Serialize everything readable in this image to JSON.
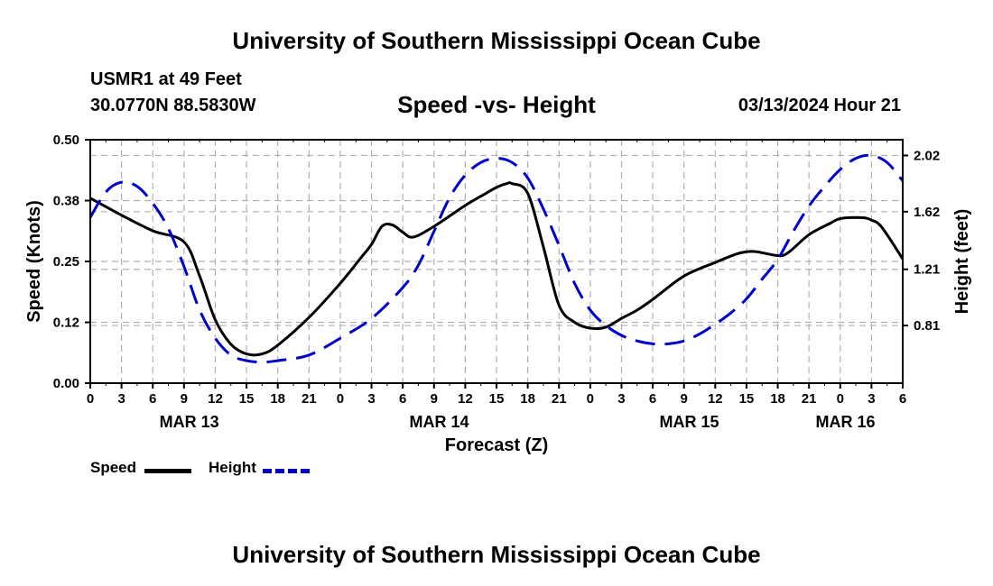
{
  "header": {
    "title": "University of Southern Mississippi Ocean Cube",
    "station": "USMR1 at 49 Feet",
    "coordinates": "30.0770N  88.5830W",
    "subtitle": "Speed -vs- Height",
    "datetime": "03/13/2024 Hour 21"
  },
  "footer": {
    "title": "University of Southern Mississippi Ocean Cube"
  },
  "chart_data": {
    "type": "line",
    "title": "Speed -vs- Height",
    "xlabel": "Forecast (Z)",
    "ylabel": "Speed (Knots)",
    "y2label": "Height (feet)",
    "colors": {
      "speed": "#000000",
      "height": "#0000cc",
      "grid": "#b0b0b0"
    },
    "x_range_hours": [
      0,
      78
    ],
    "x_tick_step_hours": 3,
    "x_tick_labels": [
      "0",
      "3",
      "6",
      "9",
      "12",
      "15",
      "18",
      "21",
      "0",
      "3",
      "6",
      "9",
      "12",
      "15",
      "18",
      "21",
      "0",
      "3",
      "6",
      "9",
      "12",
      "15",
      "18",
      "21",
      "0",
      "3",
      "6"
    ],
    "date_labels": [
      {
        "label": "MAR 13",
        "hour": 9.5
      },
      {
        "label": "MAR 14",
        "hour": 33.5
      },
      {
        "label": "MAR 15",
        "hour": 57.5
      },
      {
        "label": "MAR 16",
        "hour": 72.5
      }
    ],
    "y_left": {
      "min": 0,
      "max": 0.5,
      "ticks": [
        0.0,
        0.125,
        0.25,
        0.375,
        0.5
      ],
      "tick_labels": [
        "0.00",
        "0.12",
        "0.25",
        "0.38",
        "0.50"
      ]
    },
    "y_right": {
      "min": 0.4,
      "max": 2.132,
      "ticks": [
        0.81,
        1.21,
        1.62,
        2.02
      ],
      "tick_labels": [
        "0.81",
        "1.21",
        "1.62",
        "2.02"
      ]
    },
    "series": [
      {
        "name": "Speed",
        "axis": "left",
        "style": "solid",
        "x": [
          0,
          3,
          6,
          9,
          10.5,
          12,
          13.5,
          15,
          16.5,
          18,
          21,
          24,
          26,
          27,
          28,
          29,
          30,
          31,
          33,
          36,
          38,
          39,
          40,
          40.5,
          42,
          43.5,
          45,
          46.5,
          48,
          49.5,
          51,
          52.5,
          54,
          57,
          60,
          62,
          63,
          64,
          66,
          67,
          69,
          71,
          72,
          74,
          75,
          76,
          78
        ],
        "y": [
          0.38,
          0.345,
          0.313,
          0.29,
          0.22,
          0.13,
          0.08,
          0.06,
          0.06,
          0.078,
          0.135,
          0.205,
          0.258,
          0.285,
          0.322,
          0.325,
          0.31,
          0.3,
          0.322,
          0.365,
          0.39,
          0.402,
          0.41,
          0.41,
          0.39,
          0.28,
          0.16,
          0.125,
          0.113,
          0.115,
          0.133,
          0.15,
          0.172,
          0.22,
          0.248,
          0.265,
          0.27,
          0.27,
          0.262,
          0.268,
          0.305,
          0.328,
          0.338,
          0.34,
          0.335,
          0.32,
          0.255
        ]
      },
      {
        "name": "Height",
        "axis": "right",
        "style": "dashed",
        "x": [
          0,
          1.5,
          3,
          4.5,
          6,
          7.5,
          9,
          10.5,
          12,
          13.5,
          15,
          16.5,
          18,
          21,
          24,
          27,
          30,
          31.5,
          33,
          34.5,
          36,
          37.5,
          39,
          40.5,
          42,
          43.5,
          45,
          46.5,
          48,
          49.5,
          51,
          52.5,
          54,
          55.5,
          57,
          58.5,
          60,
          61.5,
          63,
          64.5,
          66,
          67.5,
          69,
          70.5,
          72,
          73.5,
          75,
          76.5,
          78
        ],
        "y": [
          1.58,
          1.76,
          1.83,
          1.8,
          1.68,
          1.5,
          1.23,
          0.92,
          0.72,
          0.6,
          0.56,
          0.55,
          0.56,
          0.6,
          0.72,
          0.86,
          1.08,
          1.24,
          1.48,
          1.72,
          1.88,
          1.97,
          2.0,
          1.97,
          1.86,
          1.64,
          1.38,
          1.11,
          0.92,
          0.81,
          0.74,
          0.7,
          0.68,
          0.68,
          0.7,
          0.75,
          0.82,
          0.9,
          1.0,
          1.14,
          1.28,
          1.48,
          1.66,
          1.8,
          1.92,
          2.0,
          2.02,
          1.97,
          1.84
        ]
      }
    ]
  }
}
